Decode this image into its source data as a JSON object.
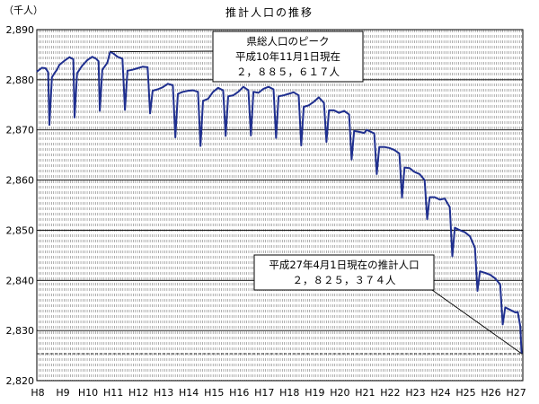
{
  "chart_data": {
    "type": "line",
    "title": "推計人口の推移",
    "unit_label": "（千人）",
    "ylim": [
      2820,
      2890
    ],
    "yticks": [
      2820,
      2830,
      2840,
      2850,
      2860,
      2870,
      2880,
      2890
    ],
    "ytick_labels": [
      "2,820",
      "2,830",
      "2,840",
      "2,850",
      "2,860",
      "2,870",
      "2,880",
      "2,890"
    ],
    "xlim": [
      8,
      27.3
    ],
    "xticks": [
      {
        "x": 8,
        "label": "H8"
      },
      {
        "x": 9,
        "label": "H9"
      },
      {
        "x": 10,
        "label": "H10"
      },
      {
        "x": 11,
        "label": "H11"
      },
      {
        "x": 12,
        "label": "H12"
      },
      {
        "x": 13,
        "label": "H13"
      },
      {
        "x": 14,
        "label": "H14"
      },
      {
        "x": 15,
        "label": "H15"
      },
      {
        "x": 16,
        "label": "H16"
      },
      {
        "x": 17,
        "label": "H17"
      },
      {
        "x": 18,
        "label": "H18"
      },
      {
        "x": 19,
        "label": "H19"
      },
      {
        "x": 20,
        "label": "H20"
      },
      {
        "x": 21,
        "label": "H21"
      },
      {
        "x": 22,
        "label": "H22"
      },
      {
        "x": 23,
        "label": "H23"
      },
      {
        "x": 24,
        "label": "H24"
      },
      {
        "x": 25,
        "label": "H25"
      },
      {
        "x": 26,
        "label": "H26"
      },
      {
        "x": 27,
        "label": "H27"
      }
    ],
    "grid": {
      "horizontal": true,
      "vertical_monthly_dashed": true
    },
    "reference_line_y": 2825.374,
    "series": [
      {
        "color": "#1f2f8f",
        "points": [
          [
            8.0,
            2881.6
          ],
          [
            8.2,
            2882.4
          ],
          [
            8.35,
            2882.3
          ],
          [
            8.45,
            2881.5
          ],
          [
            8.5,
            2871.0
          ],
          [
            8.6,
            2880.5
          ],
          [
            8.7,
            2881.3
          ],
          [
            8.8,
            2882.0
          ],
          [
            8.9,
            2883.0
          ],
          [
            9.1,
            2883.8
          ],
          [
            9.3,
            2884.5
          ],
          [
            9.45,
            2884.1
          ],
          [
            9.5,
            2872.5
          ],
          [
            9.6,
            2881.3
          ],
          [
            9.8,
            2882.8
          ],
          [
            10.0,
            2883.9
          ],
          [
            10.2,
            2884.6
          ],
          [
            10.35,
            2884.2
          ],
          [
            10.45,
            2883.7
          ],
          [
            10.5,
            2873.8
          ],
          [
            10.6,
            2882.0
          ],
          [
            10.8,
            2883.4
          ],
          [
            10.9,
            2885.4
          ],
          [
            10.92,
            2885.6
          ],
          [
            11.05,
            2885.2
          ],
          [
            11.2,
            2884.6
          ],
          [
            11.4,
            2884.2
          ],
          [
            11.5,
            2874.0
          ],
          [
            11.6,
            2881.8
          ],
          [
            11.8,
            2882.0
          ],
          [
            12.0,
            2882.3
          ],
          [
            12.2,
            2882.6
          ],
          [
            12.4,
            2882.5
          ],
          [
            12.5,
            2873.3
          ],
          [
            12.6,
            2877.8
          ],
          [
            12.8,
            2878.1
          ],
          [
            13.0,
            2878.5
          ],
          [
            13.2,
            2879.2
          ],
          [
            13.4,
            2878.9
          ],
          [
            13.5,
            2868.5
          ],
          [
            13.6,
            2877.2
          ],
          [
            13.8,
            2877.6
          ],
          [
            14.0,
            2877.8
          ],
          [
            14.2,
            2877.9
          ],
          [
            14.4,
            2877.6
          ],
          [
            14.5,
            2866.8
          ],
          [
            14.6,
            2875.8
          ],
          [
            14.8,
            2876.2
          ],
          [
            15.0,
            2877.6
          ],
          [
            15.2,
            2878.4
          ],
          [
            15.4,
            2877.9
          ],
          [
            15.5,
            2868.8
          ],
          [
            15.6,
            2876.7
          ],
          [
            15.8,
            2876.9
          ],
          [
            16.0,
            2877.6
          ],
          [
            16.2,
            2878.6
          ],
          [
            16.4,
            2877.9
          ],
          [
            16.5,
            2868.9
          ],
          [
            16.6,
            2877.6
          ],
          [
            16.8,
            2877.4
          ],
          [
            17.0,
            2878.2
          ],
          [
            17.2,
            2878.6
          ],
          [
            17.4,
            2878.1
          ],
          [
            17.5,
            2868.4
          ],
          [
            17.6,
            2876.7
          ],
          [
            17.8,
            2876.9
          ],
          [
            18.0,
            2877.2
          ],
          [
            18.2,
            2877.5
          ],
          [
            18.4,
            2876.9
          ],
          [
            18.5,
            2866.9
          ],
          [
            18.6,
            2874.6
          ],
          [
            18.8,
            2874.9
          ],
          [
            19.0,
            2875.6
          ],
          [
            19.2,
            2876.5
          ],
          [
            19.4,
            2875.4
          ],
          [
            19.5,
            2867.6
          ],
          [
            19.6,
            2873.9
          ],
          [
            19.8,
            2873.9
          ],
          [
            20.0,
            2873.4
          ],
          [
            20.2,
            2873.8
          ],
          [
            20.4,
            2873.1
          ],
          [
            20.5,
            2864.1
          ],
          [
            20.6,
            2869.8
          ],
          [
            20.8,
            2869.6
          ],
          [
            21.0,
            2869.4
          ],
          [
            21.1,
            2870.0
          ],
          [
            21.4,
            2869.3
          ],
          [
            21.5,
            2861.2
          ],
          [
            21.6,
            2866.6
          ],
          [
            21.8,
            2866.6
          ],
          [
            22.0,
            2866.4
          ],
          [
            22.2,
            2866.0
          ],
          [
            22.4,
            2865.3
          ],
          [
            22.5,
            2856.5
          ],
          [
            22.6,
            2862.5
          ],
          [
            22.8,
            2862.4
          ],
          [
            23.0,
            2861.6
          ],
          [
            23.2,
            2861.2
          ],
          [
            23.4,
            2860.0
          ],
          [
            23.5,
            2852.2
          ],
          [
            23.6,
            2856.6
          ],
          [
            23.8,
            2856.6
          ],
          [
            24.0,
            2856.1
          ],
          [
            24.2,
            2856.3
          ],
          [
            24.4,
            2854.6
          ],
          [
            24.5,
            2844.8
          ],
          [
            24.6,
            2850.5
          ],
          [
            24.8,
            2850.0
          ],
          [
            25.0,
            2849.6
          ],
          [
            25.2,
            2848.8
          ],
          [
            25.4,
            2846.5
          ],
          [
            25.5,
            2837.9
          ],
          [
            25.6,
            2841.8
          ],
          [
            25.8,
            2841.5
          ],
          [
            26.0,
            2841.1
          ],
          [
            26.2,
            2840.4
          ],
          [
            26.4,
            2839.2
          ],
          [
            26.5,
            2831.2
          ],
          [
            26.6,
            2834.6
          ],
          [
            26.8,
            2834.1
          ],
          [
            27.0,
            2833.6
          ],
          [
            27.1,
            2833.7
          ],
          [
            27.2,
            2830.8
          ],
          [
            27.25,
            2825.4
          ]
        ]
      }
    ],
    "annotations": [
      {
        "name": "peak-annotation",
        "lines": [
          "県総人口のピーク",
          "平成10年11月1日現在",
          "２，８８５，６１７人"
        ],
        "point": [
          10.92,
          2885.6
        ]
      },
      {
        "name": "latest-annotation",
        "lines": [
          "平成27年4月1日現在の推計人口",
          "２，８２５，３７４人"
        ],
        "point": [
          27.25,
          2825.4
        ]
      }
    ]
  }
}
